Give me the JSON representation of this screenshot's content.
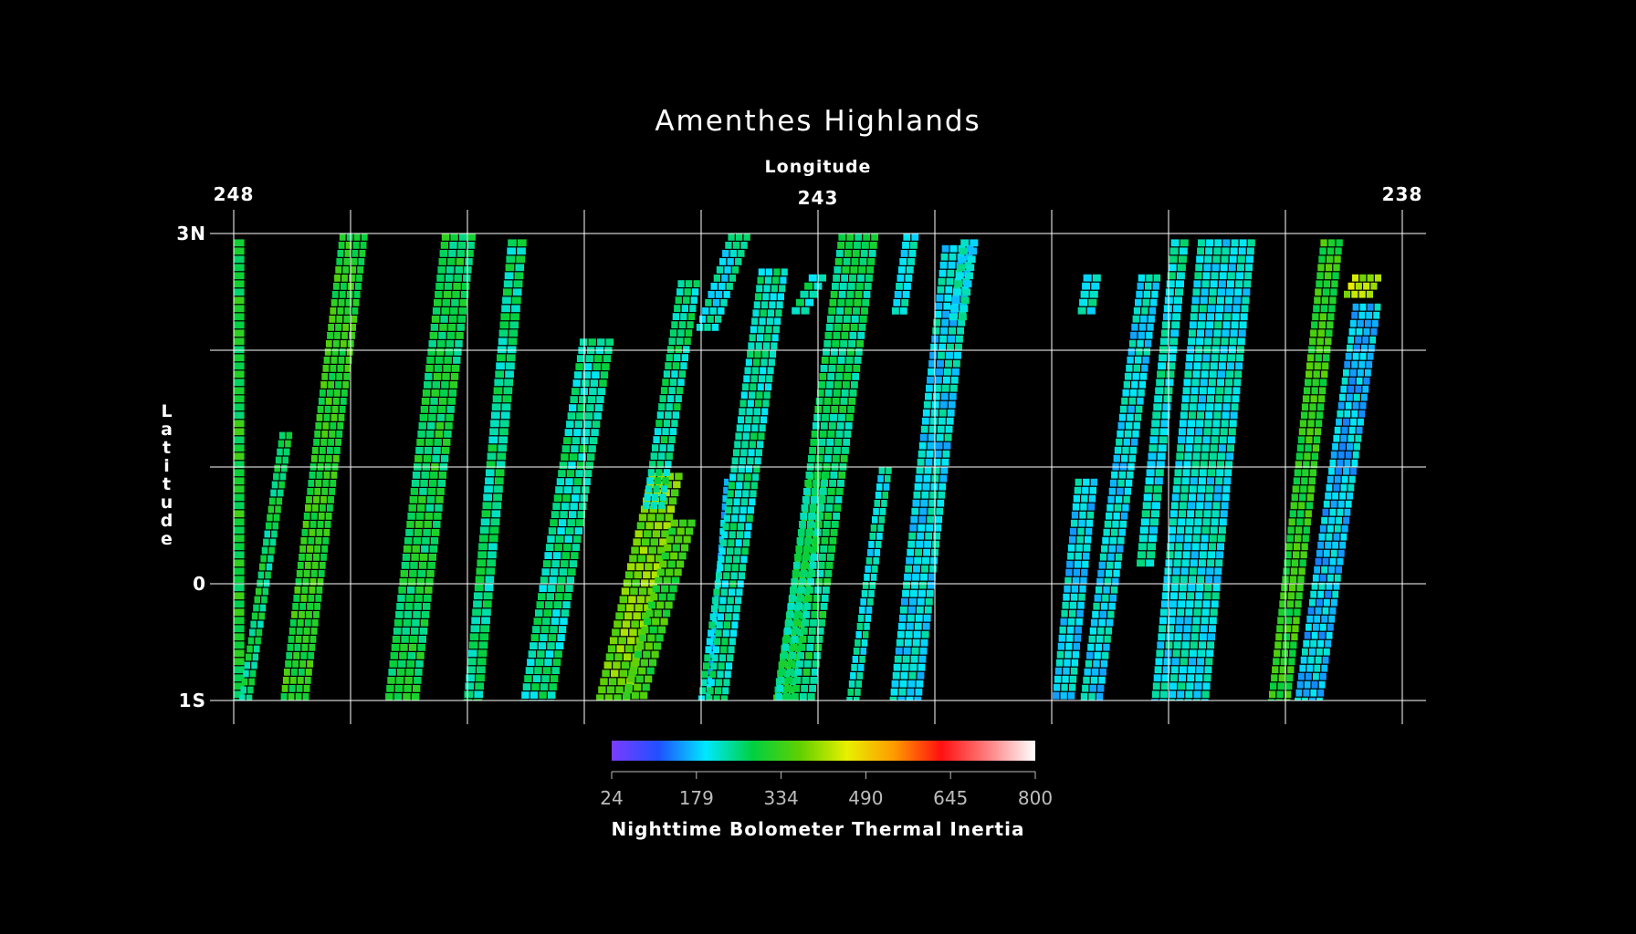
{
  "chart_data": {
    "type": "heatmap",
    "title": "Amenthes Highlands",
    "xlabel": "Longitude",
    "ylabel": "Latitude",
    "x_axis_position": "top",
    "x_range": [
      248,
      238
    ],
    "x_tick_labels": [
      {
        "value": 248,
        "label": "248"
      },
      {
        "value": 243,
        "label": "243"
      },
      {
        "value": 238,
        "label": "238"
      }
    ],
    "x_grid_values": [
      248,
      247,
      246,
      245,
      244,
      243,
      242,
      241,
      240,
      239,
      238
    ],
    "y_range": [
      -1,
      3
    ],
    "y_tick_labels": [
      {
        "value": 3,
        "label": "3N"
      },
      {
        "value": 0,
        "label": "0"
      },
      {
        "value": -1,
        "label": "1S"
      }
    ],
    "y_grid_values": [
      3,
      2,
      1,
      0,
      -1
    ],
    "grid": true,
    "colorbar": {
      "title": "Nighttime Bolometer Thermal Inertia",
      "min": 24,
      "max": 800,
      "ticks": [
        "24",
        "179",
        "334",
        "490",
        "645",
        "800"
      ],
      "colors": [
        "#7a3cff",
        "#2050ff",
        "#00e8ff",
        "#00d040",
        "#60d000",
        "#e8f000",
        "#ff9a00",
        "#ff1010",
        "#ff8080",
        "#ffffff"
      ],
      "placement": "bottom"
    },
    "swaths": [
      {
        "lon_bottom": 247.95,
        "lat_bottom": -1,
        "lon_top": 247.95,
        "lat_top": 2.95,
        "width": 0.1,
        "value": 300
      },
      {
        "lon_bottom": 247.9,
        "lat_bottom": -1,
        "lon_top": 247.55,
        "lat_top": 1.3,
        "width": 0.12,
        "value": 270
      },
      {
        "lon_bottom": 247.48,
        "lat_bottom": -1,
        "lon_top": 246.97,
        "lat_top": 3.0,
        "width": 0.25,
        "value": 315
      },
      {
        "lon_bottom": 246.56,
        "lat_bottom": -1,
        "lon_top": 246.07,
        "lat_top": 3.0,
        "width": 0.3,
        "value": 285
      },
      {
        "lon_bottom": 245.95,
        "lat_bottom": -1,
        "lon_top": 245.57,
        "lat_top": 2.95,
        "width": 0.17,
        "value": 255
      },
      {
        "lon_bottom": 245.4,
        "lat_bottom": -1,
        "lon_top": 244.89,
        "lat_top": 2.1,
        "width": 0.3,
        "value": 245
      },
      {
        "lon_bottom": 244.76,
        "lat_bottom": -1,
        "lon_top": 244.3,
        "lat_top": 0.95,
        "width": 0.3,
        "value": 380
      },
      {
        "lon_bottom": 244.58,
        "lat_bottom": -1,
        "lon_top": 244.15,
        "lat_top": 0.55,
        "width": 0.22,
        "value": 330
      },
      {
        "lon_bottom": 244.4,
        "lat_bottom": 0.7,
        "lon_top": 244.1,
        "lat_top": 2.6,
        "width": 0.2,
        "value": 250
      },
      {
        "lon_bottom": 243.95,
        "lat_bottom": 2.2,
        "lon_top": 243.67,
        "lat_top": 3.0,
        "width": 0.2,
        "value": 220
      },
      {
        "lon_bottom": 243.94,
        "lat_bottom": -1,
        "lon_top": 243.78,
        "lat_top": 0.9,
        "width": 0.05,
        "value": 180
      },
      {
        "lon_bottom": 243.9,
        "lat_bottom": -1,
        "lon_top": 243.38,
        "lat_top": 2.7,
        "width": 0.26,
        "value": 235
      },
      {
        "lon_bottom": 243.3,
        "lat_bottom": -1,
        "lon_top": 243.0,
        "lat_top": 0.95,
        "width": 0.18,
        "value": 290
      },
      {
        "lon_bottom": 243.18,
        "lat_bottom": 2.3,
        "lon_top": 243.0,
        "lat_top": 2.65,
        "width": 0.16,
        "value": 240
      },
      {
        "lon_bottom": 243.2,
        "lat_bottom": -1,
        "lon_top": 242.65,
        "lat_top": 3.0,
        "width": 0.35,
        "value": 265
      },
      {
        "lon_bottom": 242.7,
        "lat_bottom": -1,
        "lon_top": 242.42,
        "lat_top": 1.0,
        "width": 0.12,
        "value": 220
      },
      {
        "lon_bottom": 242.3,
        "lat_bottom": 2.35,
        "lon_top": 242.2,
        "lat_top": 3.0,
        "width": 0.14,
        "value": 200
      },
      {
        "lon_bottom": 242.25,
        "lat_bottom": -1,
        "lon_top": 241.8,
        "lat_top": 2.9,
        "width": 0.28,
        "value": 200
      },
      {
        "lon_bottom": 241.8,
        "lat_bottom": 2.3,
        "lon_top": 241.7,
        "lat_top": 2.95,
        "width": 0.16,
        "value": 210
      },
      {
        "lon_bottom": 240.9,
        "lat_bottom": -1,
        "lon_top": 240.7,
        "lat_top": 0.9,
        "width": 0.2,
        "value": 195
      },
      {
        "lon_bottom": 240.66,
        "lat_bottom": -1,
        "lon_top": 240.16,
        "lat_top": 2.65,
        "width": 0.2,
        "value": 200
      },
      {
        "lon_bottom": 240.7,
        "lat_bottom": 2.35,
        "lon_top": 240.65,
        "lat_top": 2.65,
        "width": 0.16,
        "value": 225
      },
      {
        "lon_bottom": 240.2,
        "lat_bottom": 0.15,
        "lon_top": 239.9,
        "lat_top": 2.95,
        "width": 0.16,
        "value": 220
      },
      {
        "lon_bottom": 239.9,
        "lat_bottom": -1,
        "lon_top": 239.5,
        "lat_top": 2.95,
        "width": 0.5,
        "value": 210
      },
      {
        "lon_bottom": 239.05,
        "lat_bottom": -1,
        "lon_top": 238.6,
        "lat_top": 2.95,
        "width": 0.2,
        "value": 320
      },
      {
        "lon_bottom": 238.8,
        "lat_bottom": -1,
        "lon_top": 238.3,
        "lat_top": 2.4,
        "width": 0.25,
        "value": 180
      },
      {
        "lon_bottom": 238.4,
        "lat_bottom": 2.45,
        "lon_top": 238.3,
        "lat_top": 2.65,
        "width": 0.26,
        "value": 420
      }
    ]
  }
}
